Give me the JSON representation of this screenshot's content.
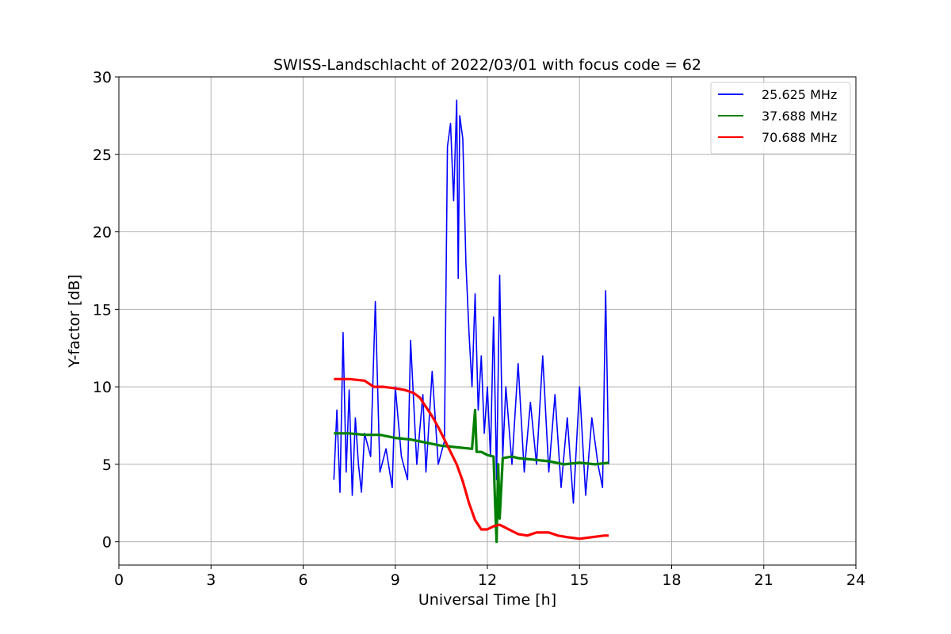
{
  "chart_data": {
    "type": "line",
    "title": "SWISS-Landschlacht of 2022/03/01 with focus code = 62",
    "xlabel": "Universal Time [h]",
    "ylabel": "Y-factor [dB]",
    "xlim": [
      0,
      24
    ],
    "ylim": [
      -1.5,
      30
    ],
    "xticks": [
      "0",
      "3",
      "6",
      "9",
      "12",
      "15",
      "18",
      "21",
      "24"
    ],
    "yticks": [
      "0",
      "5",
      "10",
      "15",
      "20",
      "25",
      "30"
    ],
    "grid": true,
    "legend_position": "top-right",
    "series": [
      {
        "name": "25.625 MHz",
        "color": "#0000ff",
        "x": [
          7.0,
          7.1,
          7.2,
          7.3,
          7.4,
          7.5,
          7.6,
          7.7,
          7.8,
          7.9,
          8.0,
          8.2,
          8.35,
          8.5,
          8.7,
          8.9,
          9.0,
          9.2,
          9.4,
          9.5,
          9.7,
          9.9,
          10.0,
          10.2,
          10.4,
          10.6,
          10.7,
          10.8,
          10.9,
          11.0,
          11.05,
          11.1,
          11.2,
          11.3,
          11.4,
          11.5,
          11.6,
          11.7,
          11.8,
          11.9,
          12.0,
          12.1,
          12.2,
          12.3,
          12.4,
          12.5,
          12.6,
          12.8,
          13.0,
          13.2,
          13.4,
          13.6,
          13.8,
          14.0,
          14.2,
          14.4,
          14.6,
          14.8,
          15.0,
          15.2,
          15.4,
          15.6,
          15.75,
          15.85,
          15.95
        ],
        "y": [
          4.0,
          8.5,
          3.2,
          13.5,
          4.5,
          9.8,
          3.0,
          8.0,
          5.0,
          3.2,
          7.0,
          5.5,
          15.5,
          4.5,
          6.0,
          3.5,
          10.0,
          5.5,
          4.0,
          13.0,
          5.0,
          9.5,
          4.5,
          11.0,
          5.0,
          6.5,
          25.5,
          27.0,
          22.0,
          28.5,
          17.0,
          27.5,
          26.0,
          18.0,
          13.5,
          10.0,
          16.0,
          8.5,
          12.0,
          7.0,
          10.0,
          5.5,
          14.5,
          4.0,
          17.2,
          5.5,
          10.0,
          5.0,
          11.5,
          4.5,
          9.0,
          5.0,
          12.0,
          4.5,
          9.5,
          3.5,
          8.0,
          2.5,
          10.0,
          3.0,
          8.0,
          5.0,
          3.5,
          16.2,
          5.0
        ]
      },
      {
        "name": "37.688 MHz",
        "color": "#008000",
        "x": [
          7.0,
          7.5,
          8.0,
          8.5,
          9.0,
          9.5,
          10.0,
          10.5,
          11.0,
          11.5,
          11.6,
          11.65,
          11.8,
          12.0,
          12.2,
          12.25,
          12.3,
          12.35,
          12.4,
          12.5,
          12.8,
          13.0,
          13.5,
          14.0,
          14.5,
          15.0,
          15.5,
          15.95
        ],
        "y": [
          7.0,
          7.0,
          6.9,
          6.9,
          6.7,
          6.6,
          6.4,
          6.2,
          6.1,
          6.0,
          8.5,
          5.8,
          5.8,
          5.6,
          5.5,
          2.5,
          0.0,
          5.0,
          1.5,
          5.4,
          5.5,
          5.4,
          5.3,
          5.2,
          5.0,
          5.1,
          5.0,
          5.1
        ]
      },
      {
        "name": "70.688 MHz",
        "color": "#ff0000",
        "x": [
          7.0,
          7.5,
          8.0,
          8.3,
          8.6,
          9.0,
          9.3,
          9.6,
          9.8,
          10.0,
          10.2,
          10.4,
          10.6,
          10.8,
          11.0,
          11.2,
          11.4,
          11.6,
          11.8,
          12.0,
          12.2,
          12.4,
          12.6,
          12.8,
          13.0,
          13.3,
          13.6,
          14.0,
          14.3,
          14.6,
          15.0,
          15.4,
          15.8,
          15.95
        ],
        "y": [
          10.5,
          10.5,
          10.4,
          10.0,
          10.0,
          9.9,
          9.8,
          9.6,
          9.3,
          8.7,
          8.1,
          7.4,
          6.6,
          5.8,
          5.0,
          3.9,
          2.5,
          1.4,
          0.8,
          0.8,
          1.0,
          1.1,
          0.9,
          0.7,
          0.5,
          0.4,
          0.6,
          0.6,
          0.4,
          0.3,
          0.2,
          0.3,
          0.4,
          0.4
        ]
      }
    ]
  }
}
